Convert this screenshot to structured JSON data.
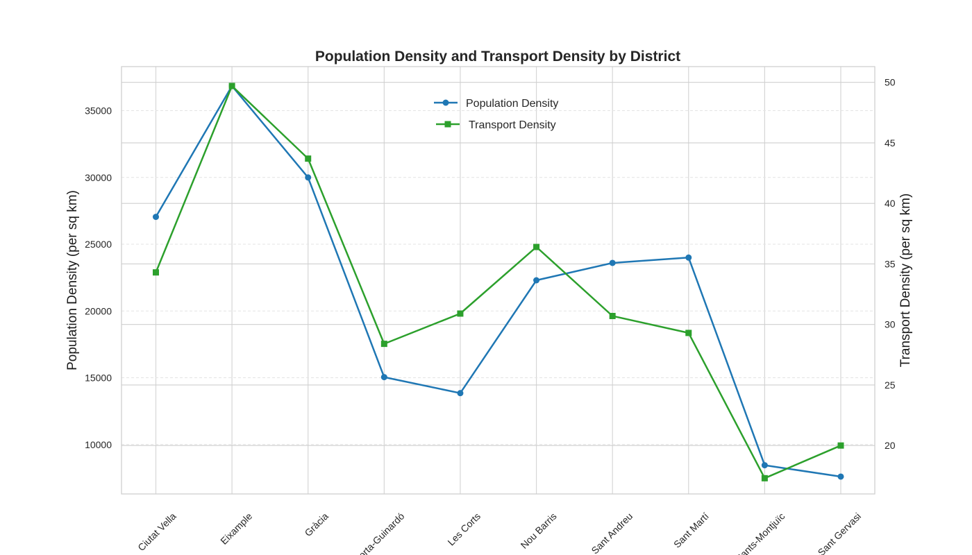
{
  "chart_data": {
    "type": "line",
    "title": "Population Density and Transport Density by District",
    "categories": [
      "Ciutat Vella",
      "Eixample",
      "Gràcia",
      "Horta-Guinardó",
      "Les Corts",
      "Nou Barris",
      "Sant Andreu",
      "Sant Martí",
      "Sants-Montjuïc",
      "Sarrià-Sant Gervasi"
    ],
    "y_left": {
      "label": "Population Density (per sq km)",
      "range": [
        6300,
        38300
      ],
      "ticks": [
        10000,
        15000,
        20000,
        25000,
        30000,
        35000
      ]
    },
    "y_right": {
      "label": "Transport Density (per sq km)",
      "range": [
        16.0,
        51.3
      ],
      "ticks": [
        20,
        25,
        30,
        35,
        40,
        45,
        50
      ]
    },
    "series": [
      {
        "name": "Population Density",
        "axis": "left",
        "color": "#1f77b4",
        "marker": "circle",
        "values": [
          27050,
          36850,
          30000,
          15050,
          13850,
          22300,
          23600,
          24000,
          8450,
          7600
        ]
      },
      {
        "name": "Transport Density",
        "axis": "right",
        "color": "#2ca02c",
        "marker": "square",
        "values": [
          34.3,
          49.7,
          43.7,
          28.4,
          30.9,
          36.4,
          30.7,
          29.3,
          17.3,
          20.0
        ]
      }
    ],
    "grid": true,
    "legend": "top-center"
  }
}
